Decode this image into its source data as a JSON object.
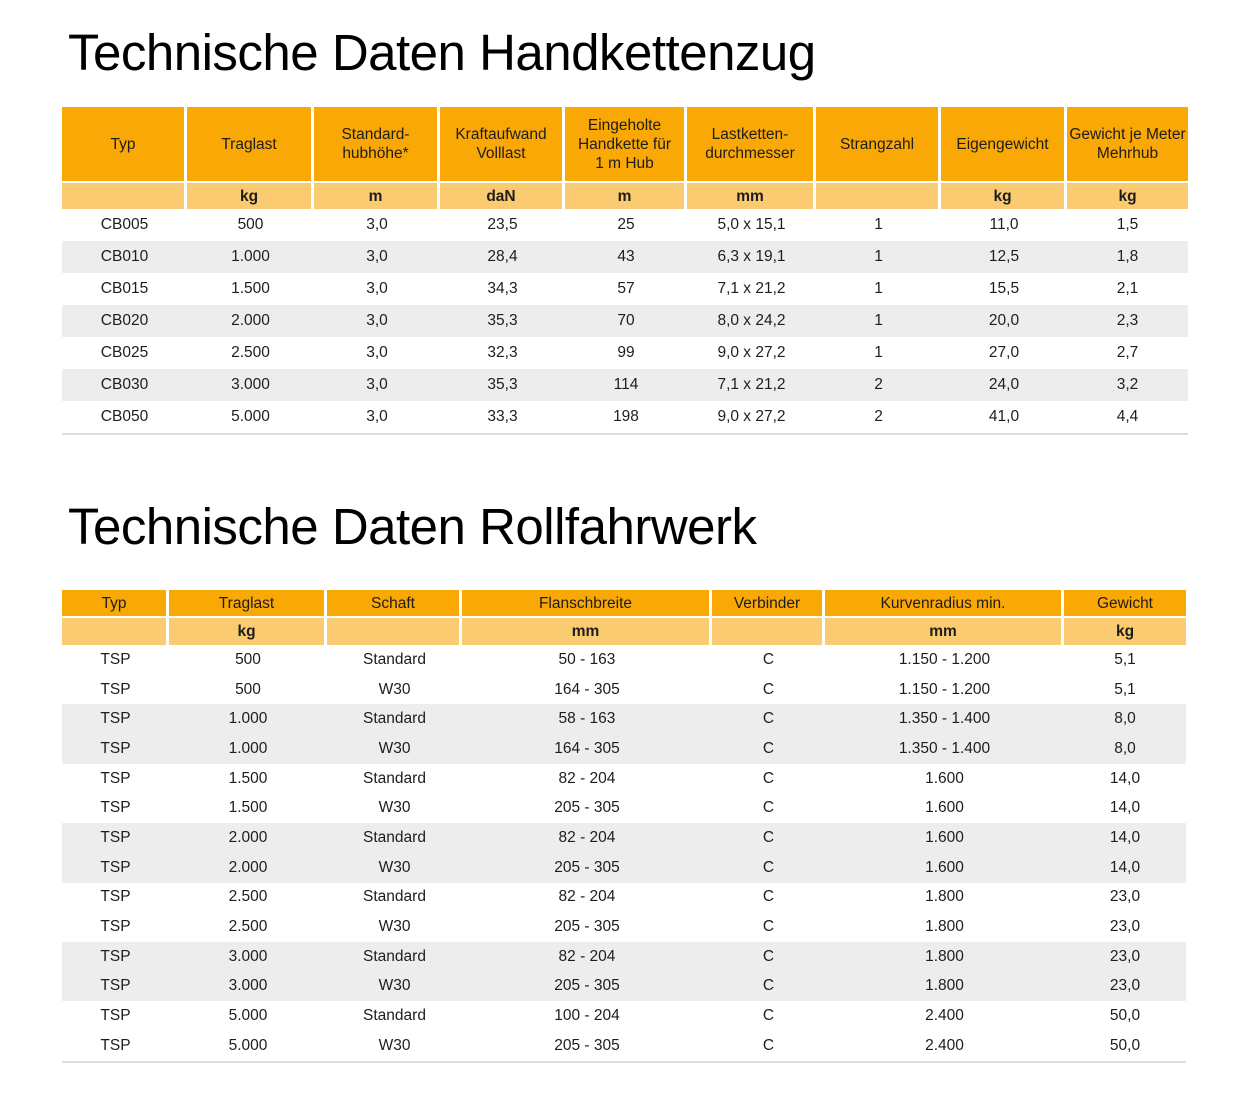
{
  "colors": {
    "header_bg": "#F9A805",
    "units_bg": "#FACB70",
    "stripe_bg": "#EDEDED",
    "table_border": "#DCDCDC",
    "text": "#1D1D1B"
  },
  "section1": {
    "title": "Technische Daten Handkettenzug",
    "table": {
      "headers": [
        [
          "Typ"
        ],
        [
          "Traglast"
        ],
        [
          "Standard-",
          "hubhöhe*"
        ],
        [
          "Kraftaufwand",
          "Volllast"
        ],
        [
          "Eingeholte",
          "Handkette für",
          "1 m Hub"
        ],
        [
          "Lastketten-",
          "durchmesser"
        ],
        [
          "Strangzahl"
        ],
        [
          "Eigengewicht"
        ],
        [
          "Gewicht je Meter",
          "Mehrhub"
        ]
      ],
      "units": [
        "",
        "kg",
        "m",
        "daN",
        "m",
        "mm",
        "",
        "kg",
        "kg"
      ],
      "rows": [
        [
          "CB005",
          "500",
          "3,0",
          "23,5",
          "25",
          "5,0 x 15,1",
          "1",
          "11,0",
          "1,5"
        ],
        [
          "CB010",
          "1.000",
          "3,0",
          "28,4",
          "43",
          "6,3 x 19,1",
          "1",
          "12,5",
          "1,8"
        ],
        [
          "CB015",
          "1.500",
          "3,0",
          "34,3",
          "57",
          "7,1 x 21,2",
          "1",
          "15,5",
          "2,1"
        ],
        [
          "CB020",
          "2.000",
          "3,0",
          "35,3",
          "70",
          "8,0 x 24,2",
          "1",
          "20,0",
          "2,3"
        ],
        [
          "CB025",
          "2.500",
          "3,0",
          "32,3",
          "99",
          "9,0 x 27,2",
          "1",
          "27,0",
          "2,7"
        ],
        [
          "CB030",
          "3.000",
          "3,0",
          "35,3",
          "114",
          "7,1 x 21,2",
          "2",
          "24,0",
          "3,2"
        ],
        [
          "CB050",
          "5.000",
          "3,0",
          "33,3",
          "198",
          "9,0 x 27,2",
          "2",
          "41,0",
          "4,4"
        ]
      ]
    }
  },
  "section2": {
    "title": "Technische Daten Rollfahrwerk",
    "table": {
      "headers": [
        [
          "Typ"
        ],
        [
          "Traglast"
        ],
        [
          "Schaft"
        ],
        [
          "Flanschbreite"
        ],
        [
          "Verbinder"
        ],
        [
          "Kurvenradius min."
        ],
        [
          "Gewicht"
        ]
      ],
      "units": [
        "",
        "kg",
        "",
        "mm",
        "",
        "mm",
        "kg"
      ],
      "rows": [
        [
          "TSP",
          "500",
          "Standard",
          "50 - 163",
          "C",
          "1.150 - 1.200",
          "5,1"
        ],
        [
          "TSP",
          "500",
          "W30",
          "164 - 305",
          "C",
          "1.150 - 1.200",
          "5,1"
        ],
        [
          "TSP",
          "1.000",
          "Standard",
          "58 - 163",
          "C",
          "1.350 - 1.400",
          "8,0"
        ],
        [
          "TSP",
          "1.000",
          "W30",
          "164 - 305",
          "C",
          "1.350 - 1.400",
          "8,0"
        ],
        [
          "TSP",
          "1.500",
          "Standard",
          "82 - 204",
          "C",
          "1.600",
          "14,0"
        ],
        [
          "TSP",
          "1.500",
          "W30",
          "205 - 305",
          "C",
          "1.600",
          "14,0"
        ],
        [
          "TSP",
          "2.000",
          "Standard",
          "82 - 204",
          "C",
          "1.600",
          "14,0"
        ],
        [
          "TSP",
          "2.000",
          "W30",
          "205 - 305",
          "C",
          "1.600",
          "14,0"
        ],
        [
          "TSP",
          "2.500",
          "Standard",
          "82 - 204",
          "C",
          "1.800",
          "23,0"
        ],
        [
          "TSP",
          "2.500",
          "W30",
          "205 - 305",
          "C",
          "1.800",
          "23,0"
        ],
        [
          "TSP",
          "3.000",
          "Standard",
          "82 - 204",
          "C",
          "1.800",
          "23,0"
        ],
        [
          "TSP",
          "3.000",
          "W30",
          "205 - 305",
          "C",
          "1.800",
          "23,0"
        ],
        [
          "TSP",
          "5.000",
          "Standard",
          "100 - 204",
          "C",
          "2.400",
          "50,0"
        ],
        [
          "TSP",
          "5.000",
          "W30",
          "205 - 305",
          "C",
          "2.400",
          "50,0"
        ]
      ]
    }
  }
}
